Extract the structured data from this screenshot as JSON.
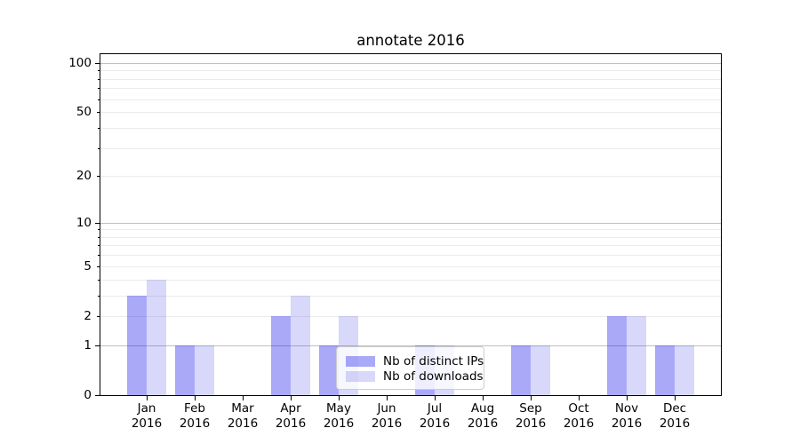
{
  "figure": {
    "background": "#ffffff",
    "text_color": "#000000"
  },
  "chart_data": {
    "type": "bar",
    "title": "annotate 2016",
    "categories": [
      "Jan",
      "Feb",
      "Mar",
      "Apr",
      "May",
      "Jun",
      "Jul",
      "Aug",
      "Sep",
      "Oct",
      "Nov",
      "Dec"
    ],
    "year_label": "2016",
    "series": [
      {
        "name": "Nb of distinct IPs",
        "color": "rgba(10,10,235,0.35)",
        "values": [
          3,
          1,
          0,
          2,
          1,
          0,
          1,
          0,
          1,
          0,
          2,
          1
        ]
      },
      {
        "name": "Nb of downloads",
        "color": "rgba(10,10,230,0.16)",
        "values": [
          4,
          1,
          0,
          3,
          2,
          0,
          1,
          0,
          1,
          0,
          2,
          1
        ]
      }
    ],
    "xlabel": "",
    "ylabel": "",
    "yscale": "log1p",
    "ylim": [
      0,
      113
    ],
    "grid": "horizontal",
    "y_axis": {
      "labeled_ticks": [
        0,
        1,
        2,
        5,
        10,
        20,
        50,
        100
      ],
      "grid_major": [
        1,
        10,
        100
      ],
      "grid_minor": [
        2,
        3,
        4,
        5,
        6,
        7,
        8,
        9,
        20,
        30,
        40,
        50,
        60,
        70,
        80,
        90
      ],
      "grid_color_major": "#c0c0c0",
      "grid_color_minor": "#ebebeb"
    },
    "legend": {
      "position": "lower center",
      "border_color": "#cccccc",
      "labels": [
        "Nb of distinct IPs",
        "Nb of downloads"
      ]
    }
  }
}
